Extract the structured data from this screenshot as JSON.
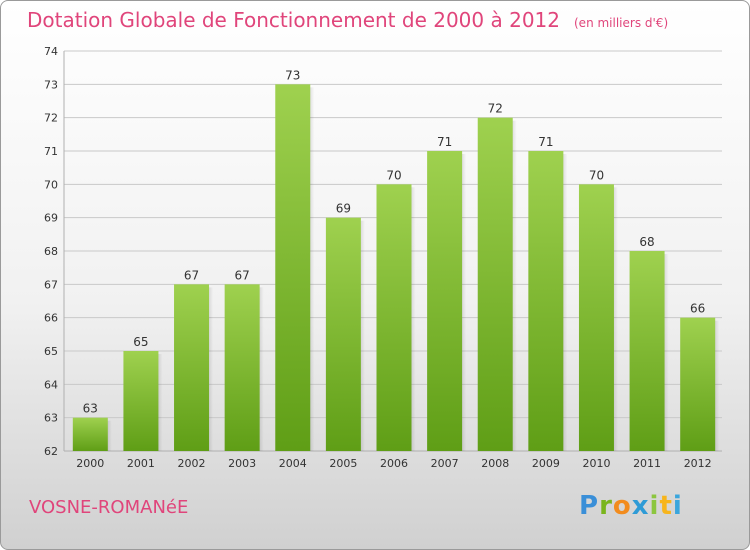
{
  "title": "Dotation Globale de Fonctionnement de 2000 à 2012",
  "subtitle": "(en milliers d'€)",
  "town": "VOSNE-ROMANéE",
  "brand": {
    "letters": [
      {
        "ch": "P",
        "color": "#3a8fd8"
      },
      {
        "ch": "r",
        "color": "#7ab51d"
      },
      {
        "ch": "o",
        "color": "#f28c1e"
      },
      {
        "ch": "x",
        "color": "#2e9bd6"
      },
      {
        "ch": "i",
        "color": "#8cc63f"
      },
      {
        "ch": "t",
        "color": "#f7b51c"
      },
      {
        "ch": "i",
        "color": "#3aa6dd"
      }
    ]
  },
  "colors": {
    "accent": "#e0457b",
    "bar_top": "#9fd14f",
    "bar_bottom": "#5f9e16",
    "grid": "#c9c9c9",
    "axis_text": "#333333"
  },
  "chart_data": {
    "type": "bar",
    "title": "Dotation Globale de Fonctionnement de 2000 à 2012",
    "subtitle": "(en milliers d'€)",
    "categories": [
      "2000",
      "2001",
      "2002",
      "2003",
      "2004",
      "2005",
      "2006",
      "2007",
      "2008",
      "2009",
      "2010",
      "2011",
      "2012"
    ],
    "values": [
      63,
      65,
      67,
      67,
      73,
      69,
      70,
      71,
      72,
      71,
      70,
      68,
      66
    ],
    "ylim": [
      62,
      74
    ],
    "yticks": [
      62,
      63,
      64,
      65,
      66,
      67,
      68,
      69,
      70,
      71,
      72,
      73,
      74
    ],
    "grid": true,
    "data_labels": true
  }
}
